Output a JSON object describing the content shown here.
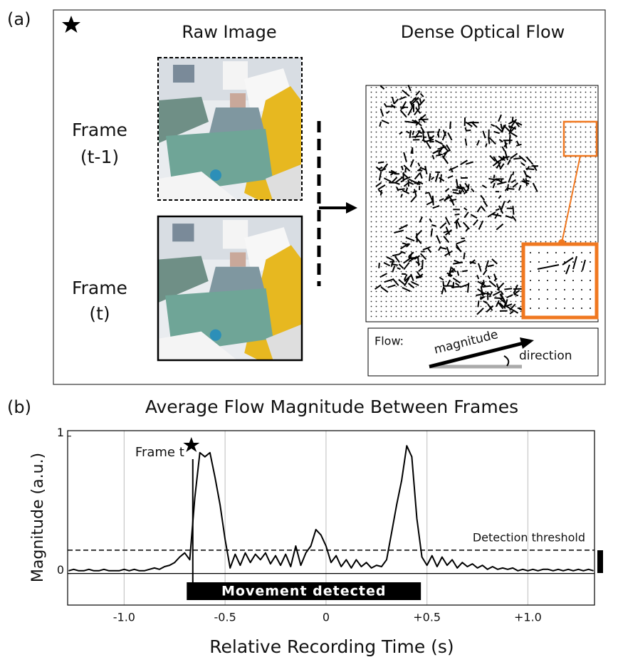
{
  "panel_a": {
    "label": "(a)",
    "raw_title": "Raw Image",
    "flow_title": "Dense Optical Flow",
    "frame_prev": [
      "Frame",
      "(t-1)"
    ],
    "frame_curr": [
      "Frame",
      "(t)"
    ],
    "legend": {
      "title": "Flow:",
      "magnitude": "magnitude",
      "direction": "direction"
    }
  },
  "chart_data": {
    "type": "line",
    "panel_label": "(b)",
    "title": "Average Flow Magnitude Between Frames",
    "x_label": "Relative Recording Time (s)",
    "y_label": "Magnitude (a.u.)",
    "color": "#000000",
    "xlim": [
      -1.28,
      1.33
    ],
    "ylim": [
      -0.23,
      1.04
    ],
    "xticks": [
      {
        "value": -1,
        "label": "-1.0"
      },
      -0.5,
      0,
      {
        "value": 0.5,
        "label": "+0.5"
      },
      {
        "value": 1,
        "label": "+1.0"
      }
    ],
    "yticks": [
      0,
      1
    ],
    "grid": true,
    "x": [
      -1.275,
      -1.25,
      -1.225,
      -1.2,
      -1.175,
      -1.15,
      -1.125,
      -1.1,
      -1.075,
      -1.05,
      -1.025,
      -1.0,
      -0.975,
      -0.95,
      -0.925,
      -0.9,
      -0.875,
      -0.85,
      -0.825,
      -0.8,
      -0.775,
      -0.75,
      -0.725,
      -0.7,
      -0.675,
      -0.65,
      -0.625,
      -0.6,
      -0.575,
      -0.55,
      -0.525,
      -0.5,
      -0.475,
      -0.45,
      -0.425,
      -0.4,
      -0.375,
      -0.35,
      -0.325,
      -0.3,
      -0.275,
      -0.25,
      -0.225,
      -0.2,
      -0.175,
      -0.15,
      -0.125,
      -0.1,
      -0.075,
      -0.05,
      -0.025,
      0,
      0.025,
      0.05,
      0.075,
      0.1,
      0.125,
      0.15,
      0.175,
      0.2,
      0.225,
      0.25,
      0.275,
      0.3,
      0.325,
      0.35,
      0.375,
      0.4,
      0.425,
      0.45,
      0.475,
      0.5,
      0.525,
      0.55,
      0.575,
      0.6,
      0.625,
      0.65,
      0.675,
      0.7,
      0.725,
      0.75,
      0.775,
      0.8,
      0.825,
      0.85,
      0.875,
      0.9,
      0.925,
      0.95,
      0.975,
      1.0,
      1.025,
      1.05,
      1.075,
      1.1,
      1.125,
      1.15,
      1.175,
      1.2,
      1.225,
      1.25,
      1.275,
      1.3,
      1.325
    ],
    "values": [
      0.02,
      0.03,
      0.02,
      0.02,
      0.03,
      0.02,
      0.02,
      0.03,
      0.02,
      0.02,
      0.02,
      0.03,
      0.02,
      0.03,
      0.02,
      0.02,
      0.03,
      0.04,
      0.03,
      0.05,
      0.06,
      0.08,
      0.12,
      0.15,
      0.1,
      0.55,
      0.88,
      0.85,
      0.88,
      0.7,
      0.5,
      0.25,
      0.04,
      0.14,
      0.06,
      0.15,
      0.08,
      0.14,
      0.1,
      0.15,
      0.07,
      0.13,
      0.06,
      0.14,
      0.05,
      0.2,
      0.06,
      0.15,
      0.2,
      0.32,
      0.28,
      0.2,
      0.08,
      0.13,
      0.05,
      0.1,
      0.04,
      0.1,
      0.05,
      0.08,
      0.04,
      0.06,
      0.05,
      0.1,
      0.3,
      0.5,
      0.68,
      0.93,
      0.85,
      0.4,
      0.12,
      0.06,
      0.13,
      0.05,
      0.12,
      0.06,
      0.1,
      0.04,
      0.08,
      0.05,
      0.07,
      0.04,
      0.06,
      0.03,
      0.05,
      0.03,
      0.04,
      0.03,
      0.04,
      0.02,
      0.03,
      0.02,
      0.03,
      0.02,
      0.03,
      0.03,
      0.02,
      0.03,
      0.02,
      0.03,
      0.02,
      0.03,
      0.02,
      0.03,
      0.02
    ],
    "threshold": 0.17,
    "threshold_label": "Detection threshold",
    "frame_marker": {
      "x": -0.66,
      "label": "Frame t"
    },
    "movement": {
      "start": -0.69,
      "end": 0.47,
      "label": "Movement detected"
    }
  }
}
